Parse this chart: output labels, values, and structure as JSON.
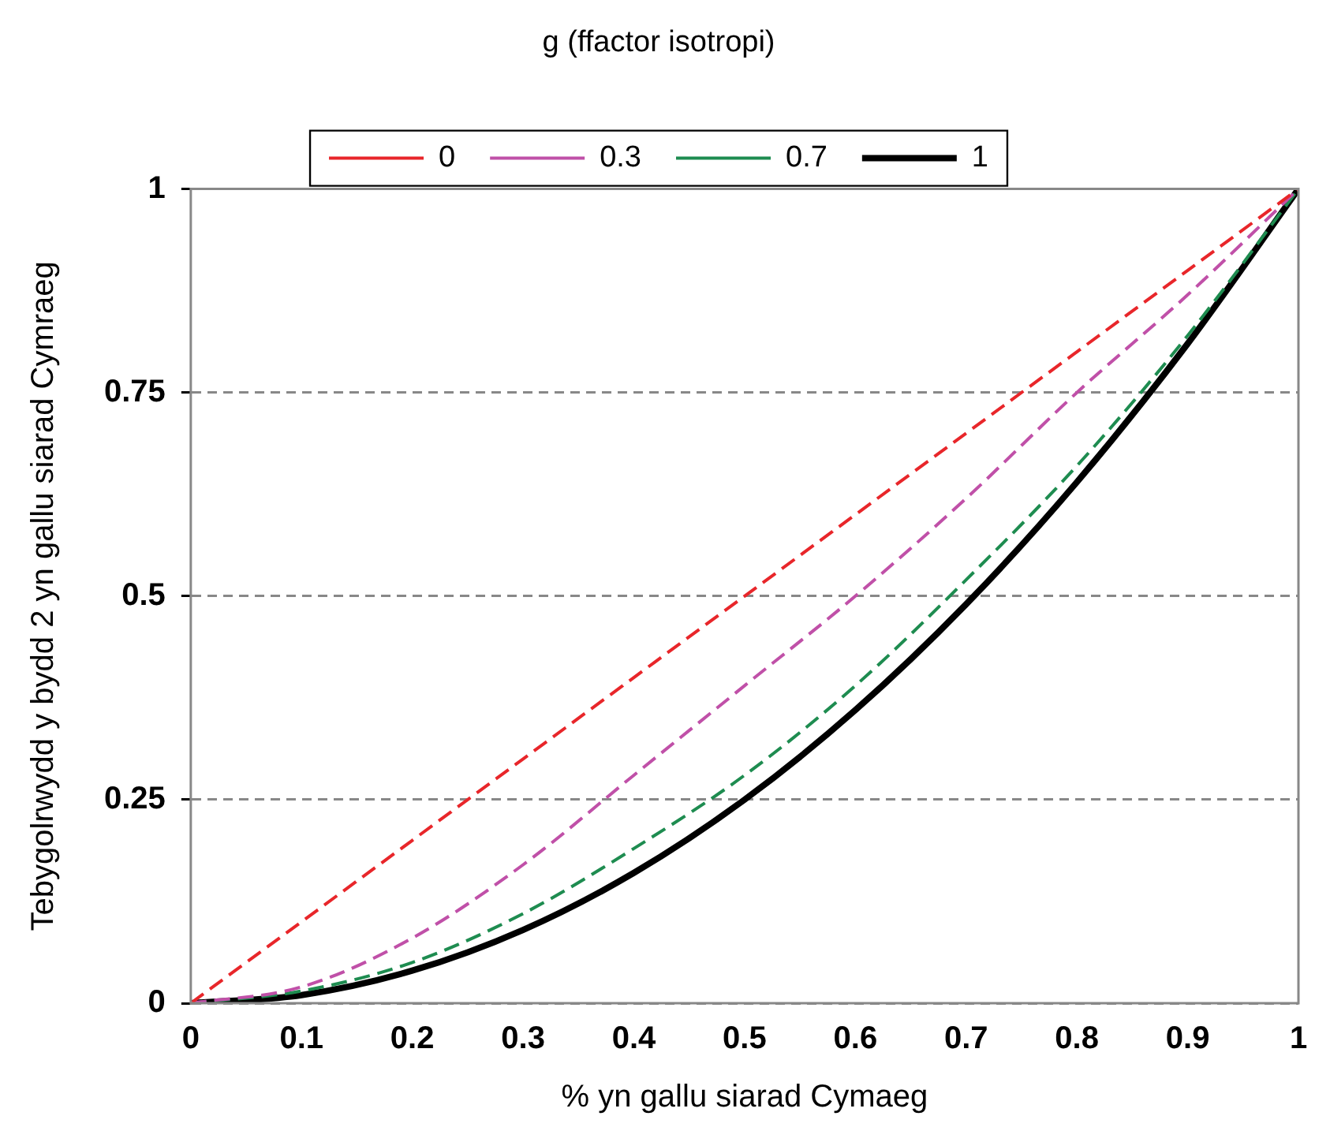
{
  "chart_data": {
    "type": "line",
    "xlabel": "% yn gallu siarad Cymaeg",
    "ylabel": "Tebygolrwydd y bydd 2 yn gallu siarad Cymraeg",
    "legend_title": "g (ffactor isotropi)",
    "x": [
      0,
      0.1,
      0.2,
      0.3,
      0.4,
      0.5,
      0.6,
      0.7,
      0.8,
      0.9,
      1
    ],
    "series": [
      {
        "name": "0",
        "color": "#e8262a",
        "line_style": "dashed",
        "values": [
          0,
          0.1,
          0.2,
          0.3,
          0.4,
          0.5,
          0.6,
          0.7,
          0.8,
          0.9,
          1
        ]
      },
      {
        "name": "0.3",
        "color": "#c050a8",
        "line_style": "dashed",
        "values": [
          0,
          0.02,
          0.08,
          0.17,
          0.28,
          0.39,
          0.5,
          0.62,
          0.75,
          0.87,
          1
        ]
      },
      {
        "name": "0.7",
        "color": "#1e8c50",
        "line_style": "dashed",
        "values": [
          0,
          0.015,
          0.05,
          0.11,
          0.19,
          0.28,
          0.39,
          0.52,
          0.66,
          0.82,
          1
        ]
      },
      {
        "name": "1",
        "color": "#000000",
        "line_style": "solid",
        "values": [
          0,
          0.01,
          0.04,
          0.09,
          0.16,
          0.25,
          0.36,
          0.49,
          0.64,
          0.81,
          1
        ]
      }
    ],
    "xlim": [
      0,
      1
    ],
    "xticks": [
      0,
      0.1,
      0.2,
      0.3,
      0.4,
      0.5,
      0.6,
      0.7,
      0.8,
      0.9,
      1
    ],
    "ylim": [
      0,
      1
    ],
    "yticks": [
      0,
      0.25,
      0.5,
      0.75,
      1
    ],
    "grid": "y",
    "legend": "top",
    "marker": "none"
  }
}
